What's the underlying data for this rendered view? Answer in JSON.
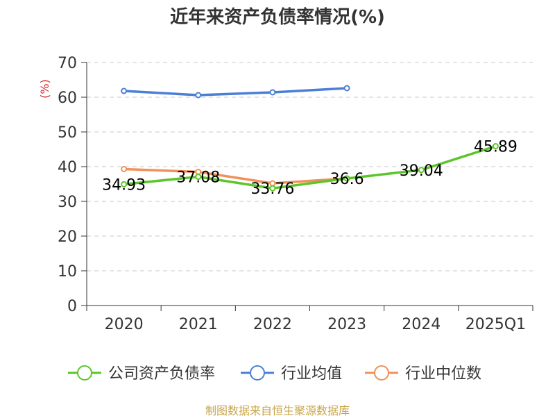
{
  "chart_data": {
    "type": "line",
    "title": "近年来资产负债率情况(%)",
    "y_unit": "(%)",
    "categories": [
      "2020",
      "2021",
      "2022",
      "2023",
      "2024",
      "2025Q1"
    ],
    "ylim": [
      0,
      70
    ],
    "y_ticks": [
      0,
      10,
      20,
      30,
      40,
      50,
      60,
      70
    ],
    "grid": true,
    "legend_position": "bottom",
    "series": [
      {
        "name": "公司资产负债率",
        "color": "#5cc52b",
        "values": [
          34.93,
          37.08,
          33.76,
          36.6,
          39.04,
          45.89
        ],
        "labels": [
          "34.93",
          "37.08",
          "33.76",
          "36.6",
          "39.04",
          "45.89"
        ]
      },
      {
        "name": "行业均值",
        "color": "#4a7fd6",
        "values": [
          61.8,
          60.6,
          61.4,
          62.6,
          null,
          null
        ]
      },
      {
        "name": "行业中位数",
        "color": "#f0915a",
        "values": [
          39.3,
          38.5,
          35.2,
          36.6,
          null,
          null
        ]
      }
    ]
  },
  "source": "制图数据来自恒生聚源数据库"
}
